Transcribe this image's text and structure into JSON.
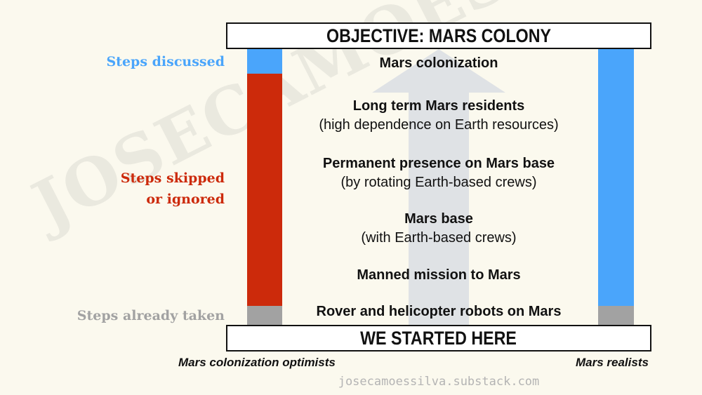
{
  "objective": "OBJECTIVE: MARS COLONY",
  "start": "WE STARTED HERE",
  "categories": {
    "discussed": {
      "label": "Steps discussed",
      "color": "#4aa5fb"
    },
    "skipped": {
      "lines": [
        "Steps skipped",
        "or ignored"
      ],
      "color": "#cc2a0b"
    },
    "taken": {
      "label": "Steps already taken",
      "color": "#a2a2a2"
    }
  },
  "steps": [
    {
      "title": "Mars colonization",
      "subtitle": ""
    },
    {
      "title": "Long term Mars residents",
      "subtitle": "(high dependence on Earth resources)"
    },
    {
      "title": "Permanent presence on Mars base",
      "subtitle": "(by rotating Earth-based crews)"
    },
    {
      "title": "Mars base",
      "subtitle": "(with Earth-based crews)"
    },
    {
      "title": "Manned mission to Mars",
      "subtitle": ""
    },
    {
      "title": "Rover and helicopter robots on Mars",
      "subtitle": ""
    }
  ],
  "columns": {
    "optimists": "Mars colonization optimists",
    "realists": "Mars realists"
  },
  "credit": "josecamoessilva.substack.com",
  "watermark": "JOSECAMOESSILVA"
}
